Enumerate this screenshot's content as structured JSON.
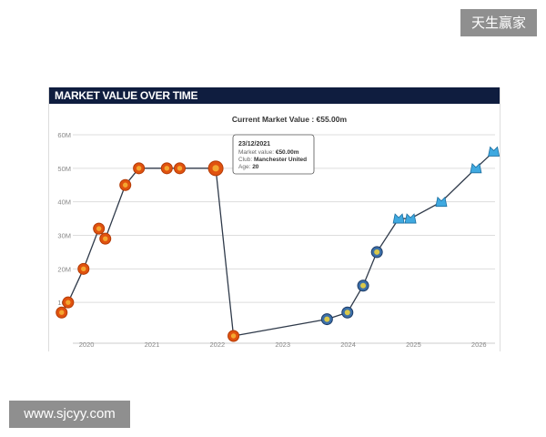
{
  "watermarks": {
    "top_right": "天生赢家",
    "bottom_left": "www.sjcyy.com"
  },
  "panel_title": "MARKET VALUE OVER TIME",
  "chart_data": {
    "type": "line",
    "title": "Current Market Value : €55.00m",
    "xlabel": "",
    "ylabel": "",
    "x_ticks": [
      "2020",
      "2021",
      "2022",
      "2023",
      "2024",
      "2025",
      "2026"
    ],
    "y_ticks": [
      "10M",
      "20M",
      "30M",
      "40M",
      "50M",
      "60M"
    ],
    "ylim": [
      0,
      60
    ],
    "xlim": [
      "2019-08-01",
      "2026-04-01"
    ],
    "grid": true,
    "colors": {
      "line": "#2f3a4a",
      "man-utd-crest": "#e0520f",
      "club-b-crest": "#3c6fa8",
      "club-c-crest": "#3fa9e0"
    },
    "points": [
      {
        "date": "2019-08-15",
        "value": 7,
        "marker": "man-utd-crest"
      },
      {
        "date": "2019-09-20",
        "value": 10,
        "marker": "man-utd-crest"
      },
      {
        "date": "2019-12-15",
        "value": 20,
        "marker": "man-utd-crest"
      },
      {
        "date": "2020-03-10",
        "value": 32,
        "marker": "man-utd-crest"
      },
      {
        "date": "2020-04-15",
        "value": 29,
        "marker": "man-utd-crest"
      },
      {
        "date": "2020-08-05",
        "value": 45,
        "marker": "man-utd-crest"
      },
      {
        "date": "2020-10-20",
        "value": 50,
        "marker": "man-utd-crest"
      },
      {
        "date": "2021-03-25",
        "value": 50,
        "marker": "man-utd-crest"
      },
      {
        "date": "2021-06-05",
        "value": 50,
        "marker": "man-utd-crest"
      },
      {
        "date": "2021-12-23",
        "value": 50,
        "marker": "man-utd-crest"
      },
      {
        "date": "2022-04-01",
        "value": 0,
        "marker": "man-utd-crest"
      },
      {
        "date": "2023-09-05",
        "value": 5,
        "marker": "club-b-crest"
      },
      {
        "date": "2023-12-28",
        "value": 7,
        "marker": "club-b-crest"
      },
      {
        "date": "2024-03-25",
        "value": 15,
        "marker": "club-b-crest"
      },
      {
        "date": "2024-06-10",
        "value": 25,
        "marker": "club-b-crest"
      },
      {
        "date": "2024-10-10",
        "value": 35,
        "marker": "club-c-crest"
      },
      {
        "date": "2024-12-15",
        "value": 35,
        "marker": "club-c-crest"
      },
      {
        "date": "2025-06-05",
        "value": 40,
        "marker": "club-c-crest"
      },
      {
        "date": "2025-12-15",
        "value": 50,
        "marker": "club-c-crest"
      },
      {
        "date": "2026-03-25",
        "value": 55,
        "marker": "club-c-crest"
      }
    ],
    "tooltip": {
      "date": "23/12/2021",
      "mv_label": "Market value: ",
      "mv_value": "€50.00m",
      "club_label": "Club: ",
      "club_value": "Manchester United",
      "age_label": "Age: ",
      "age_value": "20"
    }
  }
}
